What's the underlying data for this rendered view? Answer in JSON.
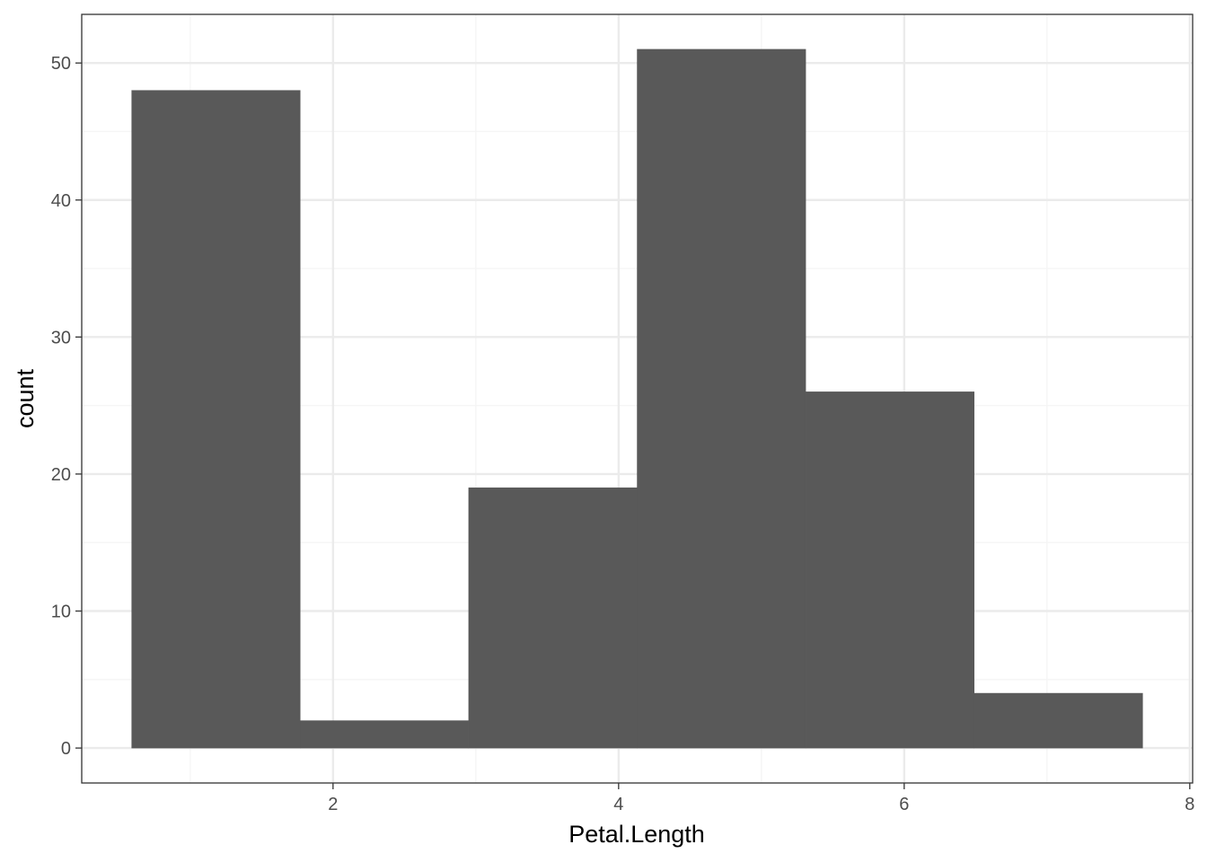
{
  "chart_data": {
    "type": "bar",
    "subtype": "histogram",
    "title": "",
    "xlabel": "Petal.Length",
    "ylabel": "count",
    "bins": [
      {
        "xmin": 0.59,
        "xmax": 1.77,
        "count": 48
      },
      {
        "xmin": 1.77,
        "xmax": 2.95,
        "count": 2
      },
      {
        "xmin": 2.95,
        "xmax": 4.13,
        "count": 19
      },
      {
        "xmin": 4.13,
        "xmax": 5.31,
        "count": 51
      },
      {
        "xmin": 5.31,
        "xmax": 6.49,
        "count": 26
      },
      {
        "xmin": 6.49,
        "xmax": 7.67,
        "count": 4
      }
    ],
    "xlim": [
      0.24,
      8.02
    ],
    "ylim": [
      -2.55,
      53.55
    ],
    "x_ticks": [
      2,
      4,
      6,
      8
    ],
    "x_tick_labels": [
      "2",
      "4",
      "6",
      "8"
    ],
    "x_minor_ticks": [
      1,
      3,
      5,
      7
    ],
    "y_ticks": [
      0,
      10,
      20,
      30,
      40,
      50
    ],
    "y_tick_labels": [
      "0",
      "10",
      "20",
      "30",
      "40",
      "50"
    ],
    "y_minor_ticks": [
      5,
      15,
      25,
      35,
      45
    ],
    "grid": true,
    "legend": "none",
    "colors": {
      "bar": "#595959",
      "grid_major": "#ebebeb",
      "grid_minor": "#f5f5f5",
      "panel_border": "#333333",
      "tick_label": "#4d4d4d",
      "axis_title": "#000000"
    }
  }
}
